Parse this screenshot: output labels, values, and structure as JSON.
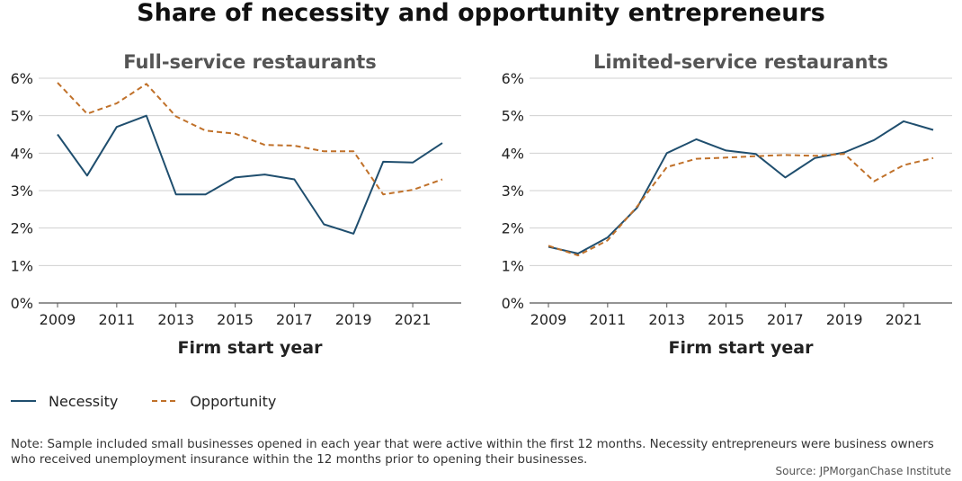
{
  "title": "Share of necessity and opportunity entrepreneurs",
  "legend": {
    "necessity": "Necessity",
    "opportunity": "Opportunity"
  },
  "note": "Note: Sample included small businesses opened in each year that were active within the first 12 months. Necessity entrepreneurs were business owners who received unemployment insurance within the 12 months prior to opening their businesses.",
  "source": "Source: JPMorganChase Institute",
  "colors": {
    "necessity": "#1f4e6e",
    "opportunity": "#c0712a",
    "grid": "#d0d0d0"
  },
  "chart_data": [
    {
      "type": "line",
      "title": "Full-service restaurants",
      "xlabel": "Firm start year",
      "ylabel": "",
      "x": [
        2009,
        2010,
        2011,
        2012,
        2013,
        2014,
        2015,
        2016,
        2017,
        2018,
        2019,
        2020,
        2021,
        2022
      ],
      "xticks": [
        2009,
        2011,
        2013,
        2015,
        2017,
        2019,
        2021
      ],
      "xlim": [
        2009,
        2022
      ],
      "ylim": [
        0,
        6
      ],
      "yticks": [
        0,
        1,
        2,
        3,
        4,
        5,
        6
      ],
      "ytick_labels": [
        "0%",
        "1%",
        "2%",
        "3%",
        "4%",
        "5%",
        "6%"
      ],
      "grid": true,
      "series": [
        {
          "name": "Necessity",
          "style": "solid",
          "values": [
            4.5,
            3.4,
            4.7,
            5.0,
            2.9,
            2.9,
            3.35,
            3.43,
            3.3,
            2.1,
            1.85,
            3.77,
            3.75,
            4.27
          ]
        },
        {
          "name": "Opportunity",
          "style": "dashed",
          "values": [
            5.88,
            5.05,
            5.33,
            5.85,
            4.98,
            4.6,
            4.52,
            4.22,
            4.2,
            4.05,
            4.05,
            2.9,
            3.02,
            3.3
          ]
        }
      ]
    },
    {
      "type": "line",
      "title": "Limited-service restaurants",
      "xlabel": "Firm start year",
      "ylabel": "",
      "x": [
        2009,
        2010,
        2011,
        2012,
        2013,
        2014,
        2015,
        2016,
        2017,
        2018,
        2019,
        2020,
        2021,
        2022
      ],
      "xticks": [
        2009,
        2011,
        2013,
        2015,
        2017,
        2019,
        2021
      ],
      "xlim": [
        2009,
        2022
      ],
      "ylim": [
        0,
        6
      ],
      "yticks": [
        0,
        1,
        2,
        3,
        4,
        5,
        6
      ],
      "ytick_labels": [
        "0%",
        "1%",
        "2%",
        "3%",
        "4%",
        "5%",
        "6%"
      ],
      "grid": true,
      "series": [
        {
          "name": "Necessity",
          "style": "solid",
          "values": [
            1.5,
            1.32,
            1.75,
            2.55,
            4.0,
            4.37,
            4.07,
            3.98,
            3.35,
            3.87,
            4.02,
            4.35,
            4.85,
            4.62
          ]
        },
        {
          "name": "Opportunity",
          "style": "dashed",
          "values": [
            1.53,
            1.27,
            1.67,
            2.58,
            3.63,
            3.85,
            3.88,
            3.92,
            3.95,
            3.93,
            3.98,
            3.25,
            3.68,
            3.87
          ]
        }
      ]
    }
  ]
}
